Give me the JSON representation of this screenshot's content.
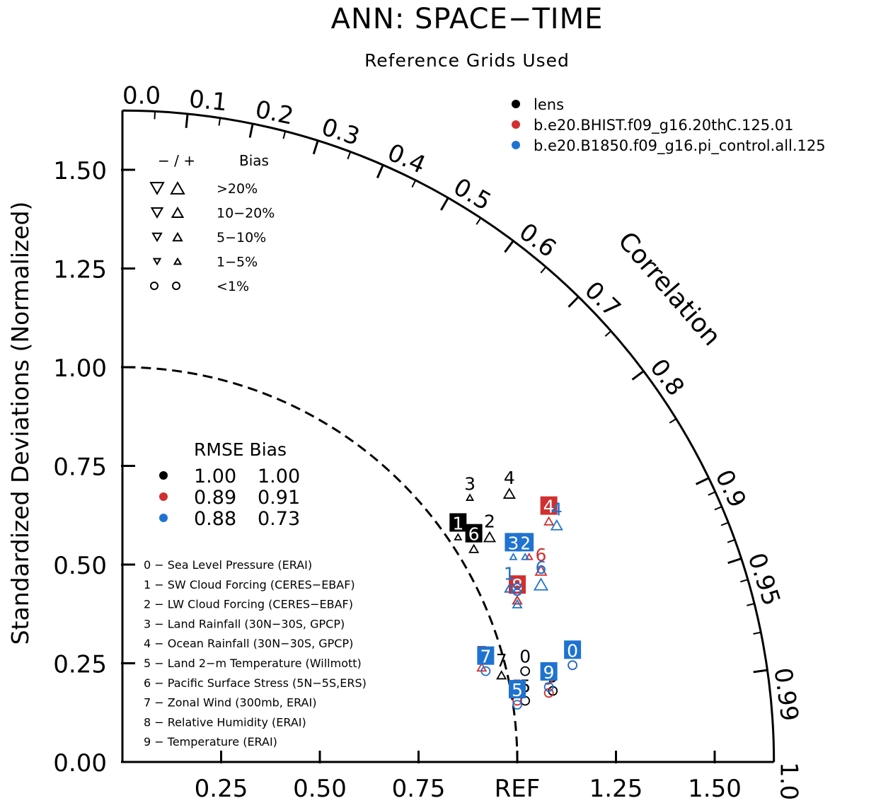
{
  "chart_data": {
    "type": "scatter",
    "subtype": "taylor-diagram",
    "title": "ANN: SPACE−TIME",
    "subtitle": "Reference Grids Used",
    "ylabel": "Standardized Deviations (Normalized)",
    "arc_label": "Correlation",
    "ref_label": "REF",
    "xlim": [
      0,
      1.65
    ],
    "ylim": [
      0,
      1.65
    ],
    "y_ticks": [
      "0.00",
      "0.25",
      "0.50",
      "0.75",
      "1.00",
      "1.25",
      "1.50"
    ],
    "x_ticks": [
      "0.25",
      "0.50",
      "0.75",
      "REF",
      "1.25",
      "1.50"
    ],
    "corr_labels": [
      "0.0",
      "0.1",
      "0.2",
      "0.3",
      "0.4",
      "0.5",
      "0.6",
      "0.7",
      "0.8",
      "0.9",
      "0.95",
      "0.99",
      "1.0"
    ],
    "grid": false,
    "series": [
      {
        "name": "lens",
        "color": "#000000"
      },
      {
        "name": "b.e20.BHIST.f09_g16.20thC.125.01",
        "color": "#d0302f"
      },
      {
        "name": "b.e20.B1850.f09_g16.pi_control.all.125",
        "color": "#1f73d0"
      }
    ],
    "legend_placement": "top-right",
    "bias_legend": {
      "header_sign": "−  /  +",
      "header_bias": "Bias",
      "rows": [
        {
          "label": ">20%",
          "size": 18
        },
        {
          "label": "10−20%",
          "size": 15
        },
        {
          "label": "5−10%",
          "size": 12
        },
        {
          "label": "1−5%",
          "size": 9
        },
        {
          "label": "<1%",
          "size": 0
        }
      ]
    },
    "rmse_table": {
      "header": "RMSE  Bias",
      "rows": [
        {
          "color": "#000000",
          "rmse": "1.00",
          "bias": "1.00"
        },
        {
          "color": "#d0302f",
          "rmse": "0.89",
          "bias": "0.91"
        },
        {
          "color": "#1f73d0",
          "rmse": "0.88",
          "bias": "0.73"
        }
      ]
    },
    "variables": [
      "0 − Sea Level Pressure (ERAI)",
      "1 − SW Cloud Forcing (CERES−EBAF)",
      "2 − LW Cloud Forcing (CERES−EBAF)",
      "3 − Land Rainfall (30N−30S, GPCP)",
      "4 − Ocean Rainfall (30N−30S, GPCP)",
      "5 − Land 2−m Temperature (Willmott)",
      "6 − Pacific Surface Stress (5N−5S,ERS)",
      "7 − Zonal Wind (300mb, ERAI)",
      "8 − Relative Humidity (ERAI)",
      "9 − Temperature (ERAI)"
    ],
    "points": [
      {
        "series": 0,
        "id": "0",
        "x": 1.02,
        "y": 0.23,
        "marker": "circle",
        "bias_size": 0,
        "boxed": false
      },
      {
        "series": 0,
        "id": "1",
        "x": 0.85,
        "y": 0.57,
        "marker": "tri-up",
        "bias_size": 9,
        "boxed": true
      },
      {
        "series": 0,
        "id": "2",
        "x": 0.93,
        "y": 0.57,
        "marker": "tri-up",
        "bias_size": 15,
        "boxed": false
      },
      {
        "series": 0,
        "id": "3",
        "x": 0.88,
        "y": 0.67,
        "marker": "tri-up",
        "bias_size": 9,
        "boxed": false
      },
      {
        "series": 0,
        "id": "4",
        "x": 0.98,
        "y": 0.68,
        "marker": "tri-up",
        "bias_size": 15,
        "boxed": false
      },
      {
        "series": 0,
        "id": "5",
        "x": 1.02,
        "y": 0.155,
        "marker": "circle",
        "bias_size": 0,
        "boxed": false
      },
      {
        "series": 0,
        "id": "6",
        "x": 0.89,
        "y": 0.54,
        "marker": "tri-up",
        "bias_size": 12,
        "boxed": true
      },
      {
        "series": 0,
        "id": "7",
        "x": 0.96,
        "y": 0.22,
        "marker": "tri-up",
        "bias_size": 12,
        "boxed": false
      },
      {
        "series": 0,
        "id": "8",
        "x": 1.0,
        "y": 0.41,
        "marker": "tri-up",
        "bias_size": 12,
        "boxed": false
      },
      {
        "series": 0,
        "id": "9",
        "x": 1.09,
        "y": 0.18,
        "marker": "circle",
        "bias_size": 0,
        "boxed": false
      },
      {
        "series": 1,
        "id": "0",
        "x": 1.14,
        "y": 0.245,
        "marker": "circle",
        "bias_size": 0,
        "boxed": false
      },
      {
        "series": 1,
        "id": "1",
        "x": 0.98,
        "y": 0.44,
        "marker": "tri-up",
        "bias_size": 12,
        "boxed": false
      },
      {
        "series": 1,
        "id": "2",
        "x": 1.03,
        "y": 0.52,
        "marker": "tri-up",
        "bias_size": 9,
        "boxed": false
      },
      {
        "series": 1,
        "id": "4",
        "x": 1.08,
        "y": 0.61,
        "marker": "tri-up",
        "bias_size": 12,
        "boxed": true
      },
      {
        "series": 1,
        "id": "5",
        "x": 1.0,
        "y": 0.155,
        "marker": "circle",
        "bias_size": 0,
        "boxed": false
      },
      {
        "series": 1,
        "id": "6",
        "x": 1.06,
        "y": 0.485,
        "marker": "tri-up",
        "bias_size": 15,
        "boxed": false
      },
      {
        "series": 1,
        "id": "7",
        "x": 0.91,
        "y": 0.24,
        "marker": "tri-up",
        "bias_size": 12,
        "boxed": false
      },
      {
        "series": 1,
        "id": "8",
        "x": 1.0,
        "y": 0.41,
        "marker": "tri-up",
        "bias_size": 12,
        "boxed": true
      },
      {
        "series": 1,
        "id": "9",
        "x": 1.08,
        "y": 0.175,
        "marker": "circle",
        "bias_size": 0,
        "boxed": false
      },
      {
        "series": 2,
        "id": "0",
        "x": 1.14,
        "y": 0.245,
        "marker": "circle",
        "bias_size": 0,
        "boxed": true
      },
      {
        "series": 2,
        "id": "1",
        "x": 0.98,
        "y": 0.44,
        "marker": "tri-up",
        "bias_size": 12,
        "boxed": false
      },
      {
        "series": 2,
        "id": "2",
        "x": 1.02,
        "y": 0.52,
        "marker": "tri-up",
        "bias_size": 9,
        "boxed": true
      },
      {
        "series": 2,
        "id": "3",
        "x": 0.99,
        "y": 0.52,
        "marker": "tri-up",
        "bias_size": 9,
        "boxed": true
      },
      {
        "series": 2,
        "id": "4",
        "x": 1.1,
        "y": 0.6,
        "marker": "tri-up",
        "bias_size": 15,
        "boxed": false
      },
      {
        "series": 2,
        "id": "5",
        "x": 1.0,
        "y": 0.145,
        "marker": "circle",
        "bias_size": 0,
        "boxed": true
      },
      {
        "series": 2,
        "id": "6",
        "x": 1.06,
        "y": 0.45,
        "marker": "tri-up",
        "bias_size": 18,
        "boxed": false
      },
      {
        "series": 2,
        "id": "7",
        "x": 0.92,
        "y": 0.23,
        "marker": "circle",
        "bias_size": 0,
        "boxed": true
      },
      {
        "series": 2,
        "id": "8",
        "x": 1.0,
        "y": 0.4,
        "marker": "tri-up",
        "bias_size": 12,
        "boxed": false
      },
      {
        "series": 2,
        "id": "9",
        "x": 1.08,
        "y": 0.19,
        "marker": "circle",
        "bias_size": 0,
        "boxed": true
      }
    ]
  }
}
